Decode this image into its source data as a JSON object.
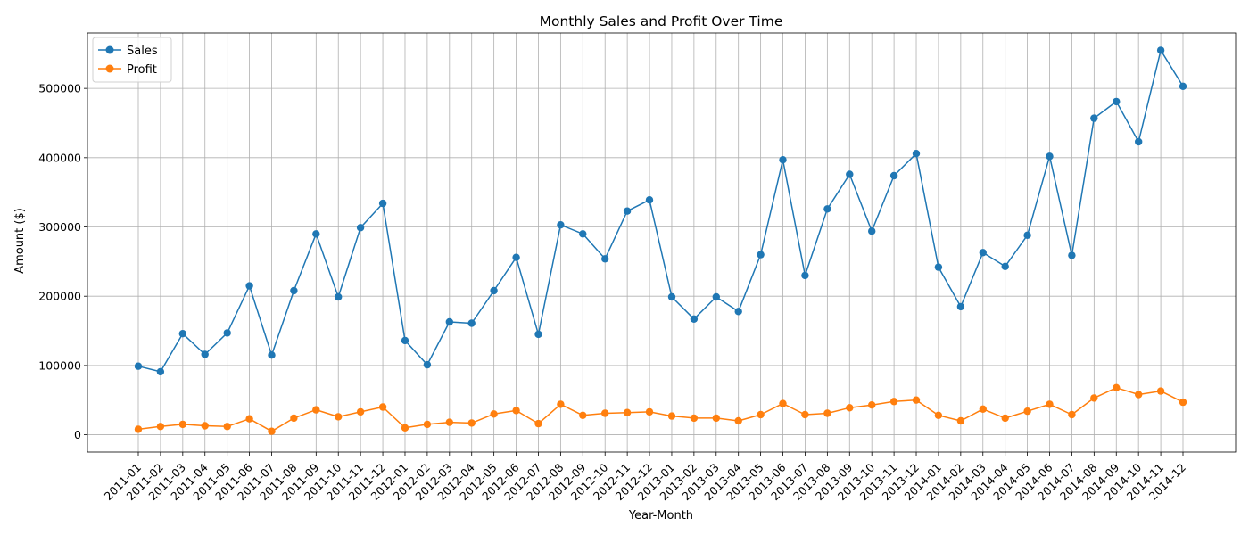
{
  "chart_data": {
    "type": "line",
    "title": "Monthly Sales and Profit Over Time",
    "xlabel": "Year-Month",
    "ylabel": "Amount ($)",
    "categories": [
      "2011-01",
      "2011-02",
      "2011-03",
      "2011-04",
      "2011-05",
      "2011-06",
      "2011-07",
      "2011-08",
      "2011-09",
      "2011-10",
      "2011-11",
      "2011-12",
      "2012-01",
      "2012-02",
      "2012-03",
      "2012-04",
      "2012-05",
      "2012-06",
      "2012-07",
      "2012-08",
      "2012-09",
      "2012-10",
      "2012-11",
      "2012-12",
      "2013-01",
      "2013-02",
      "2013-03",
      "2013-04",
      "2013-05",
      "2013-06",
      "2013-07",
      "2013-08",
      "2013-09",
      "2013-10",
      "2013-11",
      "2013-12",
      "2014-01",
      "2014-02",
      "2014-03",
      "2014-04",
      "2014-05",
      "2014-06",
      "2014-07",
      "2014-08",
      "2014-09",
      "2014-10",
      "2014-11",
      "2014-12"
    ],
    "ylim": [
      -25000,
      580000
    ],
    "yticks": [
      0,
      100000,
      200000,
      300000,
      400000,
      500000
    ],
    "ytick_labels": [
      "0",
      "100000",
      "200000",
      "300000",
      "400000",
      "500000"
    ],
    "grid": true,
    "legend_position": "top-left",
    "series": [
      {
        "name": "Sales",
        "color": "#1f77b4",
        "values": [
          99000,
          91000,
          146000,
          116000,
          147000,
          215000,
          115000,
          208000,
          290000,
          199000,
          299000,
          334000,
          136000,
          101000,
          163000,
          161000,
          208000,
          256000,
          145000,
          303000,
          290000,
          254000,
          323000,
          339000,
          199000,
          167000,
          199000,
          178000,
          260000,
          397000,
          230000,
          326000,
          376000,
          294000,
          374000,
          406000,
          242000,
          185000,
          263000,
          243000,
          288000,
          402000,
          259000,
          457000,
          481000,
          423000,
          555000,
          503000
        ]
      },
      {
        "name": "Profit",
        "color": "#ff7f0e",
        "values": [
          8000,
          12000,
          15000,
          13000,
          12000,
          23000,
          5000,
          24000,
          36000,
          26000,
          33000,
          40000,
          10000,
          15000,
          18000,
          17000,
          30000,
          35000,
          16000,
          44000,
          28000,
          31000,
          32000,
          33000,
          27000,
          24000,
          24000,
          20000,
          29000,
          45000,
          29000,
          31000,
          39000,
          43000,
          48000,
          50000,
          28000,
          20000,
          37000,
          24000,
          34000,
          44000,
          29000,
          53000,
          68000,
          58000,
          63000,
          47000
        ]
      }
    ]
  }
}
